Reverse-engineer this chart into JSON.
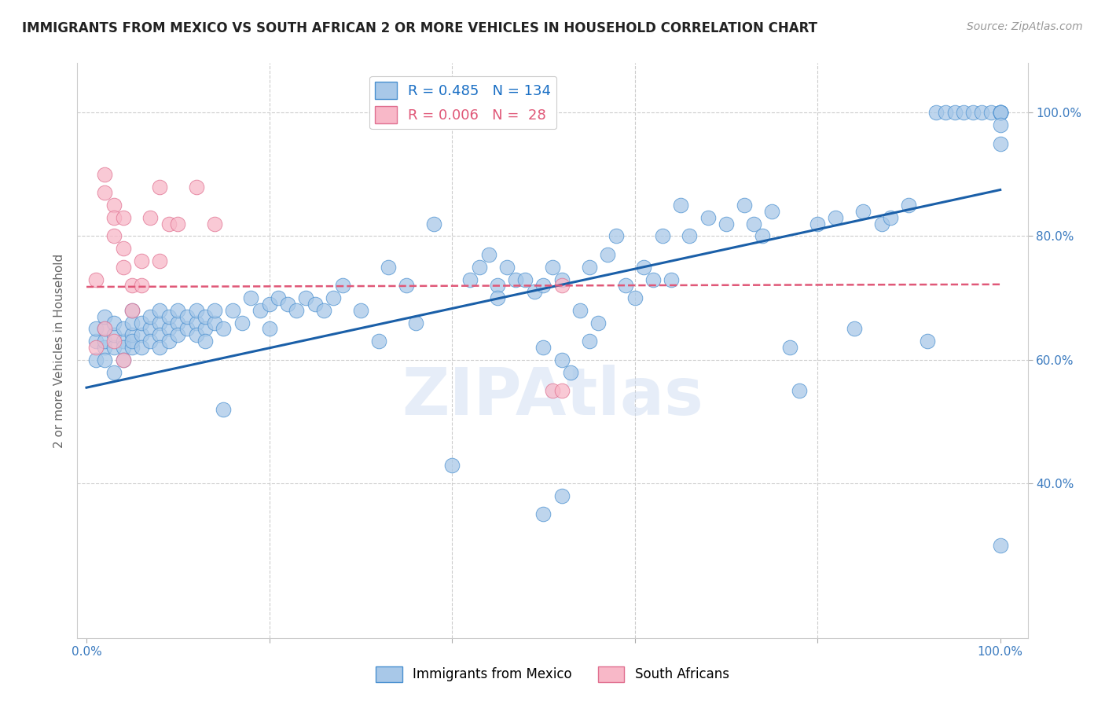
{
  "title": "IMMIGRANTS FROM MEXICO VS SOUTH AFRICAN 2 OR MORE VEHICLES IN HOUSEHOLD CORRELATION CHART",
  "source": "Source: ZipAtlas.com",
  "ylabel": "2 or more Vehicles in Household",
  "watermark": "ZIPAtlas",
  "legend_blue_r": "0.485",
  "legend_blue_n": "134",
  "legend_pink_r": "0.006",
  "legend_pink_n": " 28",
  "blue_color": "#a8c8e8",
  "blue_edge_color": "#4a90d0",
  "blue_line_color": "#1a5fa8",
  "pink_color": "#f8b8c8",
  "pink_edge_color": "#e07090",
  "pink_line_color": "#e05878",
  "legend_text_blue": "#1a6fc4",
  "legend_text_pink": "#e05878",
  "grid_color": "#cccccc",
  "background_color": "#ffffff",
  "xlim": [
    0.0,
    1.0
  ],
  "ylim": [
    0.0,
    1.0
  ],
  "blue_line_x": [
    0.0,
    1.0
  ],
  "blue_line_y": [
    0.555,
    0.875
  ],
  "pink_line_x": [
    0.0,
    1.0
  ],
  "pink_line_y": [
    0.718,
    0.722
  ],
  "blue_scatter_x": [
    0.01,
    0.01,
    0.01,
    0.02,
    0.02,
    0.02,
    0.02,
    0.02,
    0.03,
    0.03,
    0.03,
    0.03,
    0.04,
    0.04,
    0.04,
    0.04,
    0.05,
    0.05,
    0.05,
    0.05,
    0.05,
    0.06,
    0.06,
    0.06,
    0.07,
    0.07,
    0.07,
    0.08,
    0.08,
    0.08,
    0.08,
    0.09,
    0.09,
    0.09,
    0.1,
    0.1,
    0.1,
    0.11,
    0.11,
    0.12,
    0.12,
    0.12,
    0.13,
    0.13,
    0.13,
    0.14,
    0.14,
    0.15,
    0.15,
    0.16,
    0.17,
    0.18,
    0.19,
    0.2,
    0.2,
    0.21,
    0.22,
    0.23,
    0.24,
    0.25,
    0.26,
    0.27,
    0.28,
    0.3,
    0.32,
    0.33,
    0.35,
    0.36,
    0.38,
    0.4,
    0.42,
    0.43,
    0.44,
    0.45,
    0.45,
    0.46,
    0.47,
    0.48,
    0.49,
    0.5,
    0.5,
    0.51,
    0.52,
    0.52,
    0.53,
    0.54,
    0.55,
    0.55,
    0.56,
    0.57,
    0.58,
    0.59,
    0.6,
    0.61,
    0.62,
    0.63,
    0.64,
    0.65,
    0.66,
    0.68,
    0.7,
    0.72,
    0.73,
    0.74,
    0.75,
    0.77,
    0.78,
    0.8,
    0.82,
    0.84,
    0.85,
    0.87,
    0.88,
    0.9,
    0.92,
    0.93,
    0.94,
    0.95,
    0.96,
    0.97,
    0.98,
    0.99,
    1.0,
    1.0,
    1.0,
    1.0,
    1.0,
    1.0,
    1.0,
    1.0,
    0.5,
    0.52
  ],
  "blue_scatter_y": [
    0.63,
    0.65,
    0.6,
    0.62,
    0.63,
    0.65,
    0.67,
    0.6,
    0.62,
    0.64,
    0.66,
    0.58,
    0.63,
    0.65,
    0.62,
    0.6,
    0.62,
    0.64,
    0.66,
    0.68,
    0.63,
    0.64,
    0.66,
    0.62,
    0.65,
    0.67,
    0.63,
    0.66,
    0.68,
    0.64,
    0.62,
    0.65,
    0.67,
    0.63,
    0.66,
    0.68,
    0.64,
    0.65,
    0.67,
    0.66,
    0.68,
    0.64,
    0.65,
    0.67,
    0.63,
    0.66,
    0.68,
    0.65,
    0.52,
    0.68,
    0.66,
    0.7,
    0.68,
    0.69,
    0.65,
    0.7,
    0.69,
    0.68,
    0.7,
    0.69,
    0.68,
    0.7,
    0.72,
    0.68,
    0.63,
    0.75,
    0.72,
    0.66,
    0.82,
    0.43,
    0.73,
    0.75,
    0.77,
    0.72,
    0.7,
    0.75,
    0.73,
    0.73,
    0.71,
    0.72,
    0.62,
    0.75,
    0.73,
    0.6,
    0.58,
    0.68,
    0.63,
    0.75,
    0.66,
    0.77,
    0.8,
    0.72,
    0.7,
    0.75,
    0.73,
    0.8,
    0.73,
    0.85,
    0.8,
    0.83,
    0.82,
    0.85,
    0.82,
    0.8,
    0.84,
    0.62,
    0.55,
    0.82,
    0.83,
    0.65,
    0.84,
    0.82,
    0.83,
    0.85,
    0.63,
    1.0,
    1.0,
    1.0,
    1.0,
    1.0,
    1.0,
    1.0,
    1.0,
    1.0,
    1.0,
    1.0,
    1.0,
    0.98,
    0.95,
    0.3,
    0.35,
    0.38
  ],
  "pink_scatter_x": [
    0.01,
    0.01,
    0.02,
    0.02,
    0.03,
    0.03,
    0.03,
    0.04,
    0.04,
    0.04,
    0.05,
    0.05,
    0.06,
    0.06,
    0.07,
    0.08,
    0.08,
    0.09,
    0.1,
    0.12,
    0.14,
    0.02,
    0.03,
    0.04,
    0.51,
    0.52,
    0.52
  ],
  "pink_scatter_y": [
    0.73,
    0.62,
    0.9,
    0.87,
    0.85,
    0.83,
    0.8,
    0.83,
    0.78,
    0.75,
    0.72,
    0.68,
    0.76,
    0.72,
    0.83,
    0.76,
    0.88,
    0.82,
    0.82,
    0.88,
    0.82,
    0.65,
    0.63,
    0.6,
    0.55,
    0.55,
    0.72
  ]
}
